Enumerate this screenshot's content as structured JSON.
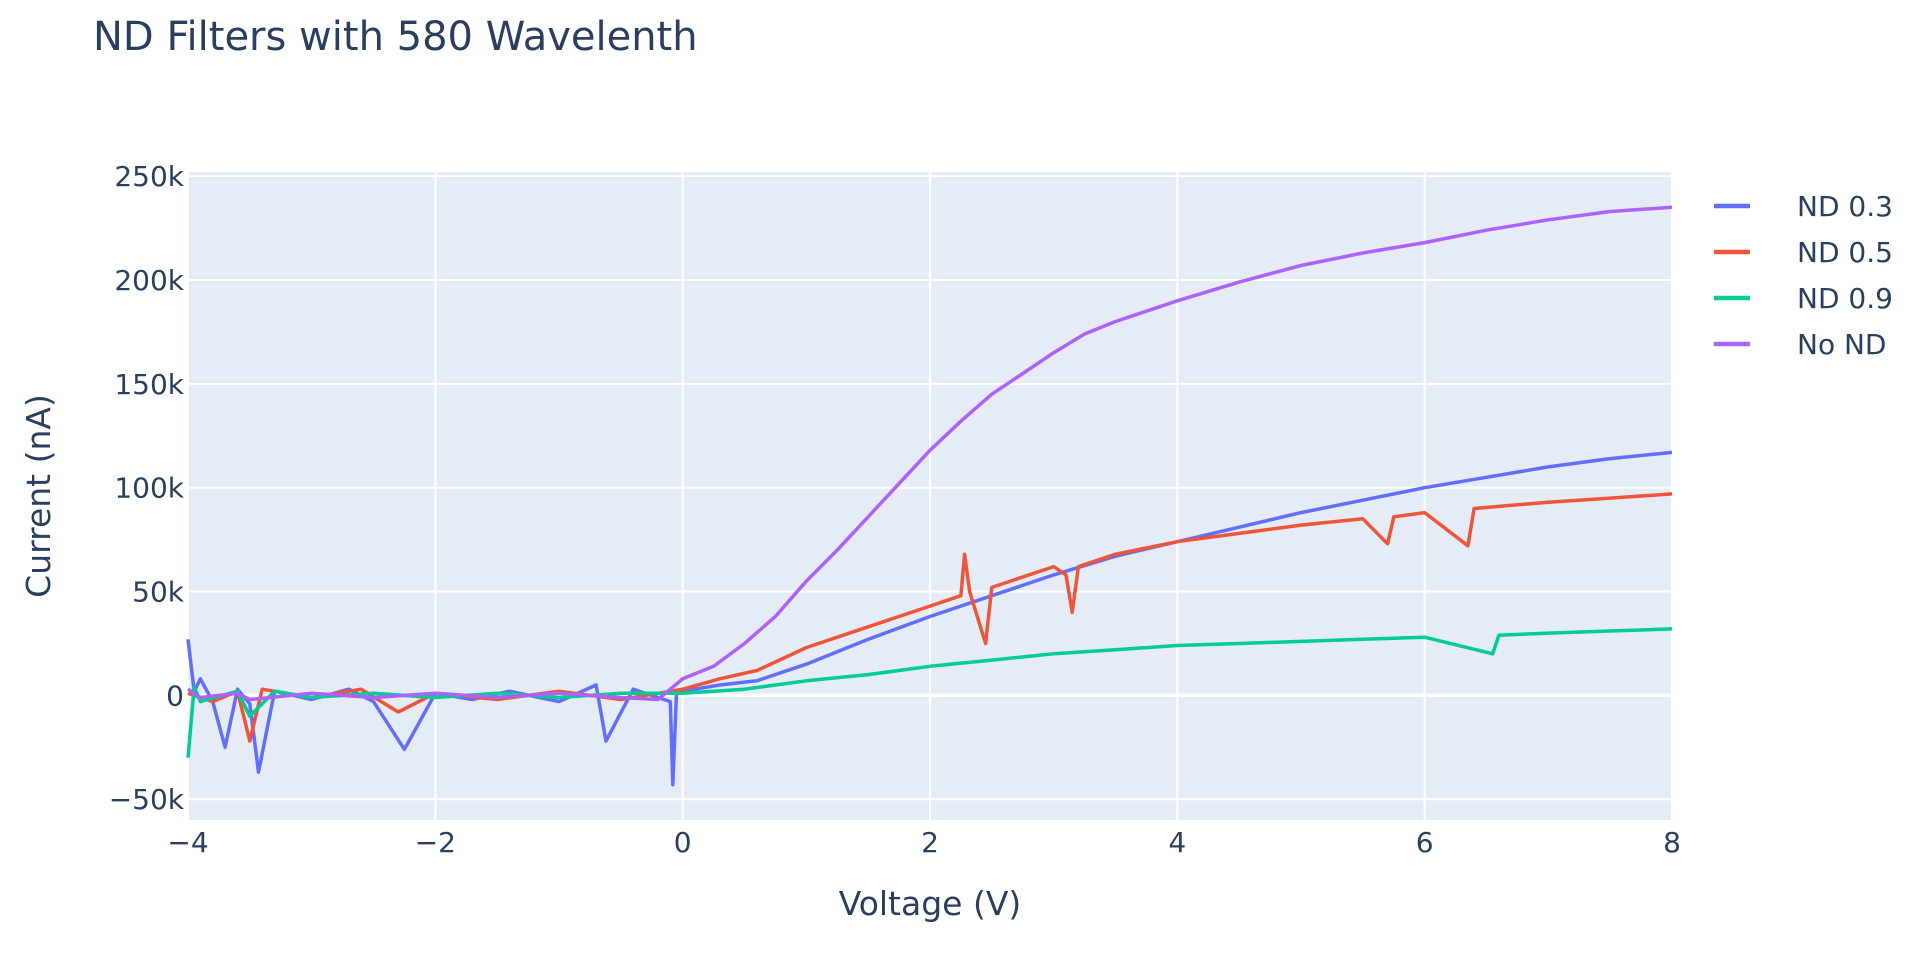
{
  "chart_data": {
    "type": "line",
    "title": "ND Filters with 580 Wavelenth",
    "xlabel": "Voltage (V)",
    "ylabel": "Current (nA)",
    "xlim": [
      -4,
      8
    ],
    "ylim": [
      -60000,
      252000
    ],
    "x_ticks": [
      -4,
      -2,
      0,
      2,
      4,
      6,
      8
    ],
    "x_tick_labels": [
      "−4",
      "−2",
      "0",
      "2",
      "4",
      "6",
      "8"
    ],
    "y_ticks": [
      -50000,
      0,
      50000,
      100000,
      150000,
      200000,
      250000
    ],
    "y_tick_labels": [
      "−50k",
      "0",
      "50k",
      "100k",
      "150k",
      "200k",
      "250k"
    ],
    "grid": true,
    "legend_position": "top-right",
    "series": [
      {
        "name": "ND 0.3",
        "color": "#636efa",
        "points": [
          [
            -4,
            27000
          ],
          [
            -3.95,
            2000
          ],
          [
            -3.9,
            8000
          ],
          [
            -3.8,
            -3000
          ],
          [
            -3.7,
            -25000
          ],
          [
            -3.6,
            3000
          ],
          [
            -3.5,
            -4000
          ],
          [
            -3.43,
            -37000
          ],
          [
            -3.3,
            2000
          ],
          [
            -3,
            -2000
          ],
          [
            -2.7,
            3000
          ],
          [
            -2.5,
            -3000
          ],
          [
            -2.25,
            -26000
          ],
          [
            -2,
            1000
          ],
          [
            -1.7,
            -2000
          ],
          [
            -1.4,
            2000
          ],
          [
            -1,
            -3000
          ],
          [
            -0.7,
            5000
          ],
          [
            -0.62,
            -22000
          ],
          [
            -0.4,
            3000
          ],
          [
            -0.2,
            -1000
          ],
          [
            -0.1,
            -3000
          ],
          [
            -0.08,
            -43000
          ],
          [
            -0.05,
            1000
          ],
          [
            0,
            2000
          ],
          [
            0.3,
            5000
          ],
          [
            0.6,
            7000
          ],
          [
            1,
            15000
          ],
          [
            1.5,
            27000
          ],
          [
            2,
            38000
          ],
          [
            2.5,
            48000
          ],
          [
            3,
            58000
          ],
          [
            3.5,
            67000
          ],
          [
            4,
            74000
          ],
          [
            4.5,
            81000
          ],
          [
            5,
            88000
          ],
          [
            5.5,
            94000
          ],
          [
            6,
            100000
          ],
          [
            6.5,
            105000
          ],
          [
            7,
            110000
          ],
          [
            7.5,
            114000
          ],
          [
            8,
            117000
          ]
        ]
      },
      {
        "name": "ND 0.5",
        "color": "#ef553b",
        "points": [
          [
            -4,
            1000
          ],
          [
            -3.8,
            -3000
          ],
          [
            -3.6,
            2000
          ],
          [
            -3.5,
            -22000
          ],
          [
            -3.4,
            3000
          ],
          [
            -3,
            -1000
          ],
          [
            -2.6,
            3000
          ],
          [
            -2.3,
            -8000
          ],
          [
            -2,
            1000
          ],
          [
            -1.5,
            -2000
          ],
          [
            -1,
            2000
          ],
          [
            -0.5,
            -2000
          ],
          [
            0,
            3000
          ],
          [
            0.3,
            8000
          ],
          [
            0.6,
            12000
          ],
          [
            1,
            23000
          ],
          [
            1.5,
            33000
          ],
          [
            2,
            43000
          ],
          [
            2.25,
            48000
          ],
          [
            2.28,
            68000
          ],
          [
            2.32,
            50000
          ],
          [
            2.45,
            25000
          ],
          [
            2.5,
            52000
          ],
          [
            3,
            62000
          ],
          [
            3.1,
            58000
          ],
          [
            3.15,
            40000
          ],
          [
            3.2,
            62000
          ],
          [
            3.5,
            68000
          ],
          [
            4,
            74000
          ],
          [
            4.5,
            78000
          ],
          [
            5,
            82000
          ],
          [
            5.5,
            85000
          ],
          [
            5.7,
            73000
          ],
          [
            5.75,
            86000
          ],
          [
            6,
            88000
          ],
          [
            6.35,
            72000
          ],
          [
            6.4,
            90000
          ],
          [
            7,
            93000
          ],
          [
            7.5,
            95000
          ],
          [
            8,
            97000
          ]
        ]
      },
      {
        "name": "ND 0.9",
        "color": "#00cc96",
        "points": [
          [
            -4,
            -30000
          ],
          [
            -3.95,
            4000
          ],
          [
            -3.9,
            -3000
          ],
          [
            -3.6,
            2000
          ],
          [
            -3.5,
            -10000
          ],
          [
            -3.3,
            2000
          ],
          [
            -3,
            -1000
          ],
          [
            -2.5,
            1000
          ],
          [
            -2,
            -1000
          ],
          [
            -1.5,
            1000
          ],
          [
            -1,
            -1000
          ],
          [
            -0.5,
            1000
          ],
          [
            0,
            1000
          ],
          [
            0.5,
            3000
          ],
          [
            1,
            7000
          ],
          [
            1.5,
            10000
          ],
          [
            2,
            14000
          ],
          [
            2.5,
            17000
          ],
          [
            3,
            20000
          ],
          [
            3.5,
            22000
          ],
          [
            4,
            24000
          ],
          [
            4.5,
            25000
          ],
          [
            5,
            26000
          ],
          [
            5.5,
            27000
          ],
          [
            6,
            28000
          ],
          [
            6.55,
            20000
          ],
          [
            6.6,
            29000
          ],
          [
            7,
            30000
          ],
          [
            7.5,
            31000
          ],
          [
            8,
            32000
          ]
        ]
      },
      {
        "name": "No ND",
        "color": "#ab63fa",
        "points": [
          [
            -4,
            3000
          ],
          [
            -3.9,
            -1000
          ],
          [
            -3.6,
            1000
          ],
          [
            -3.5,
            -2000
          ],
          [
            -3,
            1000
          ],
          [
            -2.5,
            -1000
          ],
          [
            -2,
            1000
          ],
          [
            -1.5,
            -1000
          ],
          [
            -1,
            1000
          ],
          [
            -0.5,
            -1000
          ],
          [
            -0.2,
            -2000
          ],
          [
            0,
            8000
          ],
          [
            0.25,
            14000
          ],
          [
            0.5,
            25000
          ],
          [
            0.75,
            38000
          ],
          [
            1,
            55000
          ],
          [
            1.25,
            70000
          ],
          [
            1.5,
            86000
          ],
          [
            1.75,
            102000
          ],
          [
            2,
            118000
          ],
          [
            2.25,
            132000
          ],
          [
            2.5,
            145000
          ],
          [
            2.75,
            155000
          ],
          [
            3,
            165000
          ],
          [
            3.25,
            174000
          ],
          [
            3.5,
            180000
          ],
          [
            3.75,
            185000
          ],
          [
            4,
            190000
          ],
          [
            4.5,
            199000
          ],
          [
            5,
            207000
          ],
          [
            5.5,
            213000
          ],
          [
            6,
            218000
          ],
          [
            6.5,
            224000
          ],
          [
            7,
            229000
          ],
          [
            7.5,
            233000
          ],
          [
            8,
            235000
          ]
        ]
      }
    ]
  }
}
